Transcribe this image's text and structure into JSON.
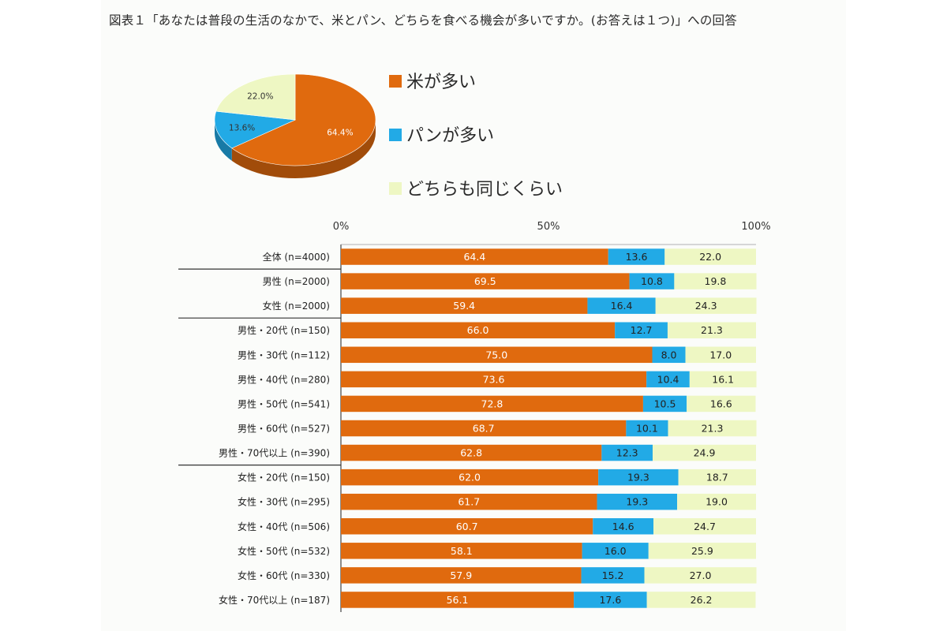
{
  "title": "図表１「あなたは普段の生活のなかで、米とパン、どちらを食べる機会が多いですか。(お答えは１つ)」への回答",
  "colors": {
    "rice": "#e06a0e",
    "bread": "#22aae6",
    "same": "#eef7c3"
  },
  "legend": [
    {
      "label": "米が多い",
      "color_key": "rice"
    },
    {
      "label": "パンが多い",
      "color_key": "bread"
    },
    {
      "label": "どちらも同じくらい",
      "color_key": "same"
    }
  ],
  "chart_data": [
    {
      "type": "pie",
      "title": "",
      "series": [
        {
          "values": [
            64.4,
            13.6,
            22.0
          ],
          "labels": [
            "64.4%",
            "13.6%",
            "22.0%"
          ],
          "categories": [
            "米が多い",
            "パンが多い",
            "どちらも同じくらい"
          ]
        }
      ]
    },
    {
      "type": "bar",
      "stacked": true,
      "orientation": "horizontal",
      "title": "",
      "xlim": [
        0,
        100
      ],
      "x_ticks": [
        "0%",
        "50%",
        "100%"
      ],
      "categories": [
        "全体 (n=4000)",
        "男性 (n=2000)",
        "女性 (n=2000)",
        "男性・20代 (n=150)",
        "男性・30代 (n=112)",
        "男性・40代 (n=280)",
        "男性・50代 (n=541)",
        "男性・60代 (n=527)",
        "男性・70代以上 (n=390)",
        "女性・20代 (n=150)",
        "女性・30代 (n=295)",
        "女性・40代 (n=506)",
        "女性・50代 (n=532)",
        "女性・60代 (n=330)",
        "女性・70代以上 (n=187)"
      ],
      "group_dividers_after": [
        0,
        2,
        8
      ],
      "series": [
        {
          "name": "米が多い",
          "values": [
            64.4,
            69.5,
            59.4,
            66.0,
            75.0,
            73.6,
            72.8,
            68.7,
            62.8,
            62.0,
            61.7,
            60.7,
            58.1,
            57.9,
            56.1
          ]
        },
        {
          "name": "パンが多い",
          "values": [
            13.6,
            10.8,
            16.4,
            12.7,
            8.0,
            10.4,
            10.5,
            10.1,
            12.3,
            19.3,
            19.3,
            14.6,
            16.0,
            15.2,
            17.6
          ]
        },
        {
          "name": "どちらも同じくらい",
          "values": [
            22.0,
            19.8,
            24.3,
            21.3,
            17.0,
            16.1,
            16.6,
            21.3,
            24.9,
            18.7,
            19.0,
            24.7,
            25.9,
            27.0,
            26.2
          ]
        }
      ]
    }
  ]
}
